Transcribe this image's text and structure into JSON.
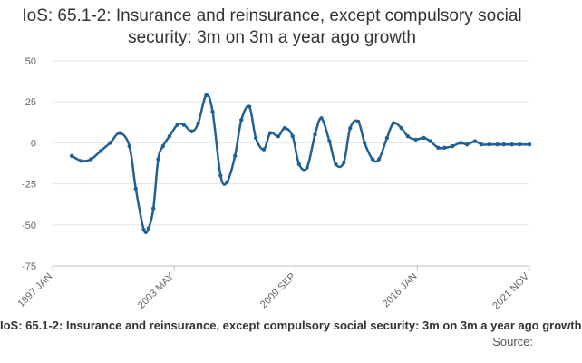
{
  "chart_data": {
    "type": "line",
    "title": "IoS: 65.1-2: Insurance and reinsurance, except compulsory social security: 3m on 3m a year ago growth",
    "footer_title": "IoS: 65.1-2: Insurance and reinsurance, except compulsory social security: 3m on 3m a year ago growth",
    "source": "Source:",
    "xlabel": "",
    "ylabel": "",
    "ylim": [
      -75,
      50
    ],
    "yticks": [
      50,
      25,
      0,
      -25,
      -50,
      -75
    ],
    "xlim": [
      "1997-01",
      "2021-11"
    ],
    "xticks": [
      "1997 JAN",
      "2003 MAY",
      "2009 SEP",
      "2016 JAN",
      "2021 NOV"
    ],
    "grid": "horizontal",
    "legend": "none",
    "line_color": "#206095",
    "series": [
      {
        "x": [
          "1998-01",
          "1998-07",
          "1999-01",
          "1999-07",
          "2000-01",
          "2000-07",
          "2001-01",
          "2001-05",
          "2001-10",
          "2002-01",
          "2002-04",
          "2002-07",
          "2002-10",
          "2003-02",
          "2003-07",
          "2003-11",
          "2004-04",
          "2004-08",
          "2005-01",
          "2005-05",
          "2005-10",
          "2006-02",
          "2006-07",
          "2006-11",
          "2007-04",
          "2007-08",
          "2008-01",
          "2008-05",
          "2008-10",
          "2009-02",
          "2009-07",
          "2009-11",
          "2010-04",
          "2010-09",
          "2011-01",
          "2011-06",
          "2011-10",
          "2012-03",
          "2012-07",
          "2012-12",
          "2013-04",
          "2013-09",
          "2014-01",
          "2014-06",
          "2014-10",
          "2015-03",
          "2015-07",
          "2015-12",
          "2016-05",
          "2016-09",
          "2017-02",
          "2017-06",
          "2017-11",
          "2018-04",
          "2018-08",
          "2019-01",
          "2019-05",
          "2019-10",
          "2020-03",
          "2020-07",
          "2020-12",
          "2021-05",
          "2021-11"
        ],
        "y": [
          -8,
          -11,
          -10,
          -5,
          0,
          6,
          -2,
          -28,
          -53,
          -52,
          -40,
          -10,
          -2,
          4,
          11,
          11,
          7,
          12,
          29,
          19,
          -20,
          -24,
          -8,
          14,
          22,
          3,
          -4,
          6,
          4,
          9,
          4,
          -13,
          -15,
          5,
          15,
          1,
          -13,
          -12,
          9,
          13,
          0,
          -10,
          -10,
          3,
          12,
          9,
          4,
          2,
          3,
          1,
          -3,
          -3,
          -2,
          0,
          -1,
          1,
          -1,
          -1,
          -1,
          -1,
          -1,
          -1,
          -1
        ]
      }
    ]
  }
}
